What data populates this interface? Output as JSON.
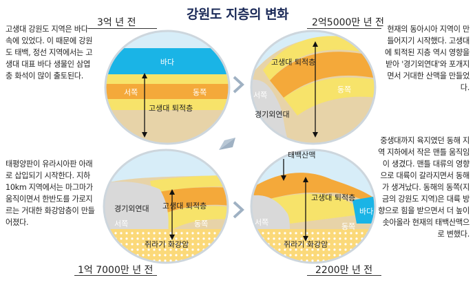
{
  "title": "강원도 지층의 변화",
  "panels": [
    {
      "era": "3억 년 전",
      "desc": "고생대 강원도 지역은 바다 속에 있었다. 이 때문에 강원도 태백, 정선 지역에서는 고생대 대표 바다 생물인 삼엽충 화석이 많이 출토된다.",
      "labels": {
        "sea": "바다",
        "west": "서쪽",
        "east": "동쪽",
        "layer": "고생대 퇴적층"
      }
    },
    {
      "era": "2억5000만 년 전",
      "desc": "현재의 동아시아 지역이 만들어지기 시작했다. 고생대에 퇴적된 지층 역시 영향을 받아 '경기외연대'와 포개지면서 거대한 산맥을 만들었다.",
      "labels": {
        "layer": "고생대 퇴적층",
        "west": "서쪽",
        "east": "동쪽",
        "block": "경기외연대"
      }
    },
    {
      "era": "1억 7000만 년 전",
      "desc": "태평양판이 유라시아판 아래로 삽입되기 시작한다. 지하 10km 지역에서는 마그마가 움직이면서 한반도를 가로지르는 거대한 화강암층이 만들어졌다.",
      "labels": {
        "block": "경기외연대",
        "layer": "고생대 퇴적층",
        "west": "서쪽",
        "east": "동쪽",
        "granite": "쥐라기 화강암"
      }
    },
    {
      "era": "2200만 년 전",
      "desc": "중생대까지 육지였던 동해 지역 지하에서 작은 맨틀 움직임이 생겼다. 맨틀 대류의 영향으로 대륙이 갈라지면서 동해가 생겨났다. 동해의 동쪽(지금의 강원도 지역)은 대륙 방향으로 힘을 받으면서 더 높이 솟아올라 현재의 태백산맥으로 변했다.",
      "labels": {
        "mountain": "태백산맥",
        "layer": "고생대 퇴적층",
        "sea": "바다",
        "west": "서쪽",
        "east": "동쪽",
        "granite": "쥐라기 화강암"
      }
    }
  ],
  "colors": {
    "sea": "#1ab4e6",
    "yellow": "#f7e36a",
    "orange": "#f4a93a",
    "tan": "#e7d3a8",
    "sky": "#d7edf8",
    "block": "#d9d9d9",
    "granite": "#fbd979",
    "arrow": "#9fb1c3"
  }
}
